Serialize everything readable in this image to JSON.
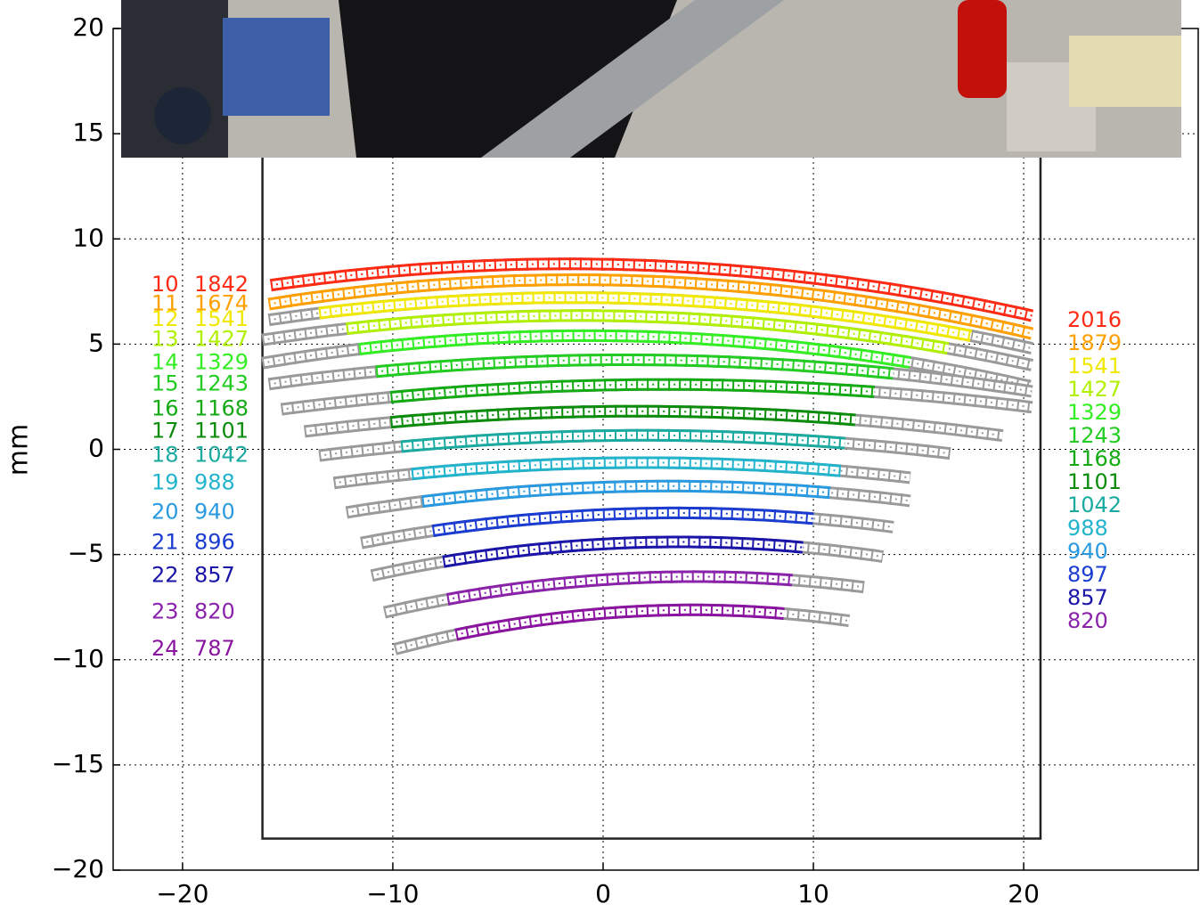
{
  "chart_data": {
    "type": "slit_map",
    "ylabel": "mm",
    "xlim": [
      -23.3,
      28.3
    ],
    "ylim": [
      -20,
      20
    ],
    "xticks": [
      {
        "value": -20,
        "label": "−20"
      },
      {
        "value": -10,
        "label": "−10"
      },
      0,
      10,
      20
    ],
    "yticks": [
      {
        "value": -20,
        "label": "−20"
      },
      {
        "value": -15,
        "label": "−15"
      },
      {
        "value": -10,
        "label": "−10"
      },
      {
        "value": -5,
        "label": "−5"
      },
      0,
      5,
      10,
      15,
      20
    ],
    "grid": true,
    "frame": {
      "x": [
        -16.2,
        20.8
      ],
      "y": [
        -18.5,
        20
      ]
    },
    "rows": [
      {
        "row": 10,
        "left_value": 1842,
        "right_value": 2016,
        "color": "#ff2a14",
        "x": [
          -15.8,
          0,
          20.4
        ],
        "y": [
          7.8,
          8.8,
          6.35
        ],
        "color_x": [
          -15.8,
          20.4
        ]
      },
      {
        "row": 11,
        "left_value": 1674,
        "right_value": 1879,
        "color": "#ffa000",
        "x": [
          -15.9,
          0,
          20.4
        ],
        "y": [
          6.9,
          8.05,
          5.5
        ],
        "color_x": [
          -15.9,
          20.4
        ]
      },
      {
        "row": 12,
        "left_value": 1541,
        "right_value": 1541,
        "color": "#f0e800",
        "x": [
          -15.9,
          0,
          20.4
        ],
        "y": [
          6.15,
          7.2,
          4.8
        ],
        "color_x": [
          -13.5,
          17.5
        ]
      },
      {
        "row": 13,
        "left_value": 1427,
        "right_value": 1427,
        "color": "#b0f000",
        "x": [
          -16.2,
          0,
          20.4
        ],
        "y": [
          5.2,
          6.35,
          4.0
        ],
        "color_x": [
          -12.2,
          16.4
        ]
      },
      {
        "row": 14,
        "left_value": 1329,
        "right_value": 1329,
        "color": "#33ee22",
        "x": [
          -16.2,
          0,
          20.3
        ],
        "y": [
          4.1,
          5.4,
          3.0
        ],
        "color_x": [
          -11.6,
          14.6
        ]
      },
      {
        "row": 15,
        "left_value": 1243,
        "right_value": 1243,
        "color": "#22cc22",
        "x": [
          -15.9,
          0,
          20.4
        ],
        "y": [
          3.1,
          4.25,
          2.75
        ],
        "color_x": [
          -10.8,
          13.8
        ]
      },
      {
        "row": 16,
        "left_value": 1168,
        "right_value": 1168,
        "color": "#14aa14",
        "x": [
          -15.3,
          0,
          20.4
        ],
        "y": [
          1.9,
          3.05,
          2.0
        ],
        "color_x": [
          -10.1,
          12.9
        ]
      },
      {
        "row": 17,
        "left_value": 1101,
        "right_value": 1101,
        "color": "#0a8c0a",
        "x": [
          -14.2,
          0,
          19.0
        ],
        "y": [
          0.85,
          1.8,
          0.65
        ],
        "color_x": [
          -10.1,
          12.0
        ]
      },
      {
        "row": 18,
        "left_value": 1042,
        "right_value": 1042,
        "color": "#1aaaa0",
        "x": [
          -13.5,
          0,
          16.5
        ],
        "y": [
          -0.3,
          0.65,
          -0.2
        ],
        "color_x": [
          -9.6,
          11.5
        ]
      },
      {
        "row": 19,
        "left_value": 988,
        "right_value": 988,
        "color": "#22b4cc",
        "x": [
          -12.8,
          0,
          14.6
        ],
        "y": [
          -1.6,
          -0.65,
          -1.35
        ],
        "color_x": [
          -9.1,
          11.3
        ]
      },
      {
        "row": 20,
        "left_value": 940,
        "right_value": 940,
        "color": "#2a9ae0",
        "x": [
          -12.2,
          0,
          14.6
        ],
        "y": [
          -3.0,
          -1.8,
          -2.45
        ],
        "color_x": [
          -8.6,
          10.8
        ]
      },
      {
        "row": 21,
        "left_value": 896,
        "right_value": 897,
        "color": "#1a3cd0",
        "x": [
          -11.5,
          0,
          13.8
        ],
        "y": [
          -4.45,
          -3.1,
          -3.7
        ],
        "color_x": [
          -8.1,
          10.0
        ]
      },
      {
        "row": 22,
        "left_value": 857,
        "right_value": 857,
        "color": "#1a14a8",
        "x": [
          -11.0,
          0,
          13.3
        ],
        "y": [
          -6.0,
          -4.5,
          -5.1
        ],
        "color_x": [
          -7.6,
          9.5
        ]
      },
      {
        "row": 23,
        "left_value": 820,
        "right_value": 820,
        "color": "#8a22aa",
        "x": [
          -10.4,
          0,
          12.4
        ],
        "y": [
          -7.75,
          -6.2,
          -6.55
        ],
        "color_x": [
          -7.4,
          9.0
        ]
      },
      {
        "row": 24,
        "left_value": 787,
        "right_value": null,
        "color": "#8a14a0",
        "x": [
          -9.9,
          0,
          11.7
        ],
        "y": [
          -9.5,
          -7.8,
          -8.15
        ],
        "color_x": [
          -7.0,
          8.6
        ]
      }
    ]
  }
}
